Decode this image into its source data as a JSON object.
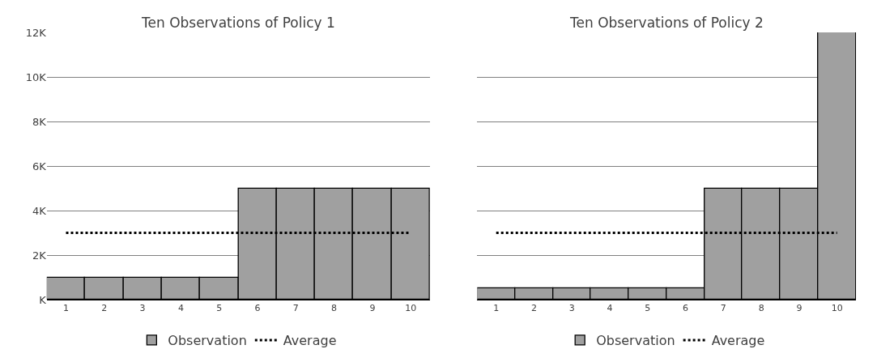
{
  "chart_data": [
    {
      "type": "bar",
      "title": "Ten Observations of Policy 1",
      "categories": [
        "1",
        "2",
        "3",
        "4",
        "5",
        "6",
        "7",
        "8",
        "9",
        "10"
      ],
      "series": [
        {
          "name": "Observation",
          "color": "#a0a0a0",
          "values": [
            1000,
            1000,
            1000,
            1000,
            1000,
            5000,
            5000,
            5000,
            5000,
            5000
          ]
        },
        {
          "name": "Average",
          "type": "line",
          "color": "#000000",
          "line_style": "dotted",
          "values": [
            3000,
            3000,
            3000,
            3000,
            3000,
            3000,
            3000,
            3000,
            3000,
            3000
          ]
        }
      ],
      "ylim": [
        0,
        12000
      ],
      "yticks": [
        {
          "value": 0,
          "label": "K"
        },
        {
          "value": 2000,
          "label": "2K"
        },
        {
          "value": 4000,
          "label": "4K"
        },
        {
          "value": 6000,
          "label": "6K"
        },
        {
          "value": 8000,
          "label": "8K"
        },
        {
          "value": 10000,
          "label": "10K"
        },
        {
          "value": 12000,
          "label": "12K"
        }
      ],
      "grid": "y",
      "legend": "bottom"
    },
    {
      "type": "bar",
      "title": "Ten Observations of Policy 2",
      "categories": [
        "1",
        "2",
        "3",
        "4",
        "5",
        "6",
        "7",
        "8",
        "9",
        "10"
      ],
      "series": [
        {
          "name": "Observation",
          "color": "#a0a0a0",
          "values": [
            500,
            500,
            500,
            500,
            500,
            500,
            5000,
            5000,
            5000,
            12000
          ]
        },
        {
          "name": "Average",
          "type": "line",
          "color": "#000000",
          "line_style": "dotted",
          "values": [
            3000,
            3000,
            3000,
            3000,
            3000,
            3000,
            3000,
            3000,
            3000,
            3000
          ]
        }
      ],
      "ylim": [
        0,
        12000
      ],
      "yticks": [
        {
          "value": 0,
          "label": null
        },
        {
          "value": 2000,
          "label": null
        },
        {
          "value": 4000,
          "label": null
        },
        {
          "value": 6000,
          "label": null
        },
        {
          "value": 8000,
          "label": null
        },
        {
          "value": 10000,
          "label": null
        },
        {
          "value": 12000,
          "label": null
        }
      ],
      "grid": "y",
      "legend": "bottom",
      "tick_labels": "x"
    }
  ]
}
